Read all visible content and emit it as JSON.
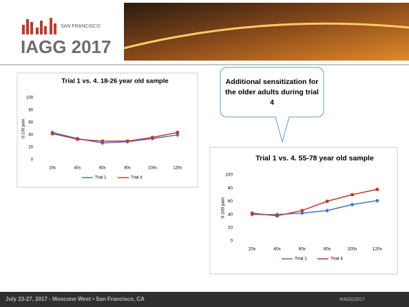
{
  "header": {
    "logo_city": "SAN FRANCISCO",
    "logo_name": "IAGG 2017"
  },
  "callout": "Additional sensitization for the older adults during trial 4",
  "footer": {
    "left": "July 23-27, 2017 - Moscone West • San Francisco, CA",
    "right": "#IAGG2017"
  },
  "chart_data": [
    {
      "type": "line",
      "title": "Trial 1 vs. 4.  18-26 year old sample",
      "y_label": "0-100 pain",
      "categories": [
        "20s",
        "40s",
        "60s",
        "80s",
        "100s",
        "120s"
      ],
      "series": [
        {
          "name": "Trial 1",
          "color": "#4472c4",
          "values": [
            44,
            34,
            27,
            29,
            34,
            40
          ]
        },
        {
          "name": "Trial 4",
          "color": "#c0392b",
          "values": [
            42,
            33,
            30,
            30,
            36,
            44
          ]
        }
      ],
      "ylim": [
        0,
        100
      ],
      "yticks": [
        0,
        20,
        40,
        60,
        80,
        100
      ],
      "legend": "bottom"
    },
    {
      "type": "line",
      "title": "Trial 1 vs. 4.  55-78 year old sample",
      "y_label": "0-100 pain",
      "categories": [
        "20s",
        "40s",
        "60s",
        "80s",
        "100s",
        "120s"
      ],
      "series": [
        {
          "name": "Trial 1",
          "color": "#4472c4",
          "values": [
            40,
            40,
            42,
            46,
            55,
            61
          ]
        },
        {
          "name": "Trial 4",
          "color": "#c0392b",
          "values": [
            42,
            38,
            46,
            60,
            70,
            78
          ]
        }
      ],
      "ylim": [
        0,
        100
      ],
      "yticks": [
        0,
        20,
        40,
        60,
        80,
        100
      ],
      "legend": "bottom"
    }
  ]
}
